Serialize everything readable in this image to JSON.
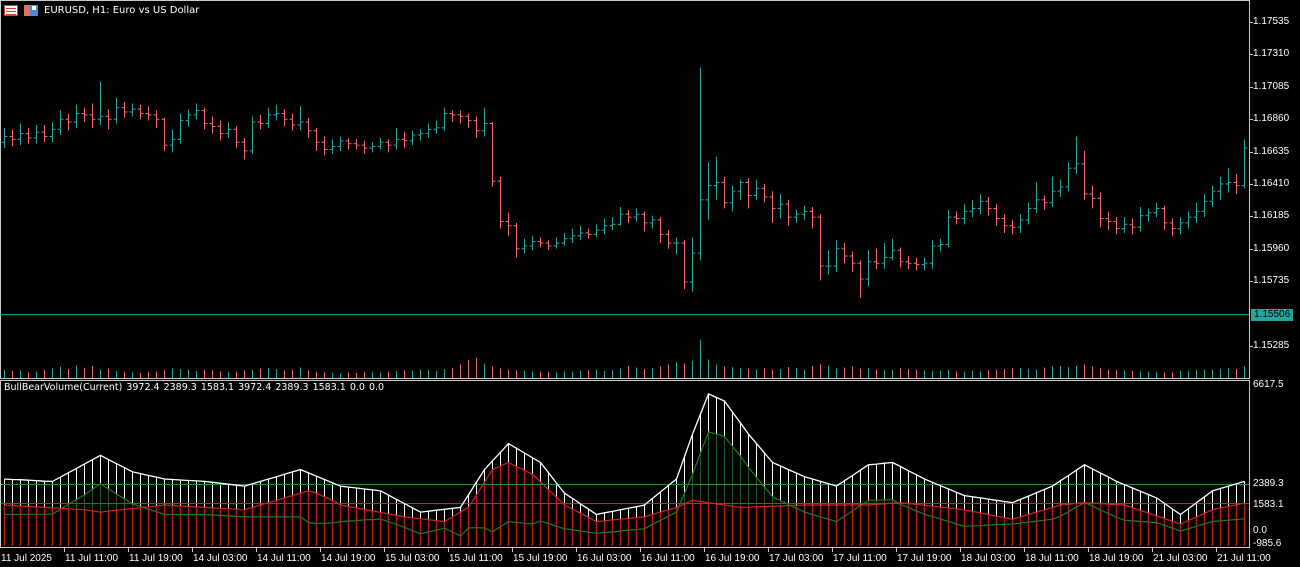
{
  "window": {
    "title": "EURUSD, H1:  Euro vs US Dollar",
    "icons": [
      "template-icon",
      "save-icon"
    ]
  },
  "colors": {
    "background": "#000000",
    "bull_bar": "#26a69a",
    "bear_bar": "#ef6a6a",
    "frame": "#c8c8c8",
    "total_line": "#ffffff",
    "bull_line": "#1f7a1f",
    "bear_line": "#d42020",
    "level_green": "#2a8a2a",
    "level_red": "#d42020",
    "current_price": "#26a69a"
  },
  "price_axis": {
    "labels": [
      "1.17535",
      "1.17310",
      "1.17085",
      "1.16860",
      "1.16635",
      "1.16410",
      "1.16185",
      "1.15960",
      "1.15735",
      "1.15285"
    ],
    "current_price": "1.15506"
  },
  "indicator": {
    "label": "BullBearVolume(Current)",
    "values": [
      "3972.4",
      "2389.3",
      "1583.1",
      "3972.4",
      "2389.3",
      "1583.1",
      "0.0",
      "0.0"
    ],
    "axis_labels": {
      "max": "6617.5",
      "level_bull": "2389.3",
      "level_bear": "1583.1",
      "zero": "0.0",
      "min": "-985.6"
    },
    "range": [
      -985.6,
      6617.5
    ],
    "levels": [
      2389.3,
      1583.1
    ]
  },
  "time_axis": {
    "labels": [
      "11 Jul 2025",
      "11 Jul 11:00",
      "11 Jul 19:00",
      "14 Jul 03:00",
      "14 Jul 11:00",
      "14 Jul 19:00",
      "15 Jul 03:00",
      "15 Jul 11:00",
      "15 Jul 19:00",
      "16 Jul 03:00",
      "16 Jul 11:00",
      "16 Jul 19:00",
      "17 Jul 03:00",
      "17 Jul 11:00",
      "17 Jul 19:00",
      "18 Jul 03:00",
      "18 Jul 11:00",
      "18 Jul 19:00",
      "21 Jul 03:00",
      "21 Jul 11:00"
    ]
  },
  "chart_data": [
    {
      "type": "ohlc",
      "symbol": "EURUSD",
      "timeframe": "H1",
      "ylim": [
        1.1517,
        1.177
      ],
      "open": [
        1.167,
        1.1674,
        1.1672,
        1.1676,
        1.1673,
        1.1677,
        1.1674,
        1.1679,
        1.1686,
        1.1684,
        1.169,
        1.1689,
        1.1686,
        1.1688,
        1.1686,
        1.1694,
        1.1691,
        1.1693,
        1.169,
        1.1689,
        1.1686,
        1.1668,
        1.1672,
        1.1685,
        1.1689,
        1.1692,
        1.1683,
        1.1681,
        1.1676,
        1.1679,
        1.167,
        1.1664,
        1.1684,
        1.1683,
        1.1689,
        1.169,
        1.1686,
        1.1682,
        1.1684,
        1.1678,
        1.167,
        1.1665,
        1.1667,
        1.1671,
        1.1669,
        1.1668,
        1.1666,
        1.1667,
        1.167,
        1.1668,
        1.1672,
        1.1671,
        1.1675,
        1.1676,
        1.1679,
        1.168,
        1.169,
        1.1689,
        1.1688,
        1.1685,
        1.1678,
        1.1683,
        1.1643,
        1.1615,
        1.1612,
        1.1596,
        1.1598,
        1.1601,
        1.16,
        1.1598,
        1.16,
        1.1603,
        1.1605,
        1.1607,
        1.1606,
        1.1609,
        1.1612,
        1.1613,
        1.162,
        1.1618,
        1.162,
        1.1614,
        1.1616,
        1.1606,
        1.16,
        1.16,
        1.1573,
        1.1593,
        1.163,
        1.164,
        1.1642,
        1.1628,
        1.1636,
        1.1642,
        1.1633,
        1.1638,
        1.1632,
        1.1624,
        1.1627,
        1.1618,
        1.162,
        1.1622,
        1.1618,
        1.1584,
        1.1584,
        1.1596,
        1.1591,
        1.1586,
        1.1575,
        1.1587,
        1.1586,
        1.159,
        1.1595,
        1.1587,
        1.1586,
        1.1585,
        1.1586,
        1.1598,
        1.1599,
        1.1618,
        1.1617,
        1.1622,
        1.1624,
        1.1629,
        1.1624,
        1.1617,
        1.1612,
        1.1611,
        1.1616,
        1.1624,
        1.163,
        1.1628,
        1.1636,
        1.1639,
        1.1652,
        1.1655,
        1.1634,
        1.1631,
        1.1617,
        1.1615,
        1.161,
        1.1613,
        1.1611,
        1.1619,
        1.1621,
        1.1624,
        1.1614,
        1.161,
        1.1614,
        1.1618,
        1.1622,
        1.1629,
        1.1636,
        1.1641,
        1.1642,
        1.164
      ],
      "high": [
        1.168,
        1.1679,
        1.1683,
        1.168,
        1.1682,
        1.1682,
        1.1684,
        1.1692,
        1.169,
        1.1696,
        1.1694,
        1.1697,
        1.1712,
        1.1693,
        1.1701,
        1.1698,
        1.1697,
        1.1696,
        1.1695,
        1.1692,
        1.1687,
        1.1679,
        1.169,
        1.1693,
        1.1697,
        1.1694,
        1.1688,
        1.1685,
        1.1684,
        1.1681,
        1.1673,
        1.1688,
        1.1689,
        1.1694,
        1.1696,
        1.1693,
        1.169,
        1.1695,
        1.1687,
        1.168,
        1.1674,
        1.1672,
        1.1674,
        1.1673,
        1.1672,
        1.1671,
        1.167,
        1.1673,
        1.1672,
        1.168,
        1.1677,
        1.1678,
        1.1679,
        1.1683,
        1.1685,
        1.1694,
        1.1692,
        1.1692,
        1.169,
        1.1688,
        1.1694,
        1.1684,
        1.1646,
        1.1621,
        1.1614,
        1.1603,
        1.1605,
        1.1604,
        1.1602,
        1.1604,
        1.1607,
        1.161,
        1.1612,
        1.161,
        1.1613,
        1.1617,
        1.1618,
        1.1625,
        1.1623,
        1.1624,
        1.1622,
        1.1619,
        1.1618,
        1.1609,
        1.1604,
        1.1602,
        1.1604,
        1.1722,
        1.1656,
        1.166,
        1.1646,
        1.164,
        1.1644,
        1.1645,
        1.1644,
        1.1641,
        1.1636,
        1.1634,
        1.163,
        1.1623,
        1.1626,
        1.1625,
        1.162,
        1.1595,
        1.1602,
        1.16,
        1.1594,
        1.1588,
        1.1595,
        1.1596,
        1.16,
        1.1603,
        1.1597,
        1.1591,
        1.159,
        1.159,
        1.1602,
        1.1603,
        1.1623,
        1.1622,
        1.1627,
        1.163,
        1.1634,
        1.1632,
        1.1627,
        1.162,
        1.1616,
        1.162,
        1.1628,
        1.1642,
        1.1633,
        1.1646,
        1.1644,
        1.1656,
        1.1674,
        1.1664,
        1.164,
        1.1635,
        1.1622,
        1.1618,
        1.1618,
        1.1617,
        1.1625,
        1.1624,
        1.1628,
        1.1626,
        1.1617,
        1.1618,
        1.1622,
        1.1628,
        1.1634,
        1.164,
        1.1646,
        1.1652,
        1.1648,
        1.1672
      ],
      "low": [
        1.1666,
        1.1667,
        1.1668,
        1.1669,
        1.1669,
        1.167,
        1.167,
        1.1675,
        1.1678,
        1.168,
        1.1684,
        1.168,
        1.1682,
        1.1679,
        1.1683,
        1.1687,
        1.1688,
        1.1686,
        1.1685,
        1.168,
        1.1664,
        1.1663,
        1.1669,
        1.1681,
        1.1686,
        1.1679,
        1.1676,
        1.1671,
        1.1673,
        1.1666,
        1.1658,
        1.1662,
        1.1679,
        1.168,
        1.1685,
        1.1681,
        1.1678,
        1.1678,
        1.1673,
        1.1664,
        1.1661,
        1.1662,
        1.1664,
        1.1665,
        1.1665,
        1.1662,
        1.1663,
        1.1665,
        1.1663,
        1.1665,
        1.1666,
        1.1668,
        1.1671,
        1.1673,
        1.1676,
        1.1678,
        1.1684,
        1.1683,
        1.168,
        1.1673,
        1.1674,
        1.1639,
        1.161,
        1.1605,
        1.159,
        1.1593,
        1.1595,
        1.1597,
        1.1595,
        1.1596,
        1.1598,
        1.16,
        1.1602,
        1.1603,
        1.1604,
        1.1606,
        1.1609,
        1.1612,
        1.1614,
        1.1615,
        1.1608,
        1.161,
        1.16,
        1.1596,
        1.1592,
        1.1568,
        1.1566,
        1.1588,
        1.1616,
        1.163,
        1.1624,
        1.1622,
        1.163,
        1.1624,
        1.163,
        1.1628,
        1.1614,
        1.1617,
        1.1612,
        1.1614,
        1.1616,
        1.161,
        1.1574,
        1.1578,
        1.158,
        1.1586,
        1.158,
        1.1562,
        1.157,
        1.1582,
        1.1582,
        1.1588,
        1.1583,
        1.1582,
        1.1581,
        1.1581,
        1.1582,
        1.1594,
        1.1597,
        1.1613,
        1.1613,
        1.1618,
        1.162,
        1.1619,
        1.1612,
        1.1607,
        1.1606,
        1.1607,
        1.1613,
        1.1621,
        1.1623,
        1.1625,
        1.1632,
        1.1636,
        1.1648,
        1.163,
        1.1624,
        1.1611,
        1.1609,
        1.1606,
        1.1607,
        1.1606,
        1.1608,
        1.1615,
        1.1618,
        1.1609,
        1.1605,
        1.1606,
        1.161,
        1.1614,
        1.1618,
        1.1625,
        1.163,
        1.1635,
        1.1634,
        1.1638
      ],
      "close": [
        1.1674,
        1.1672,
        1.1676,
        1.1673,
        1.1677,
        1.1674,
        1.1679,
        1.1686,
        1.1684,
        1.169,
        1.1689,
        1.1686,
        1.1688,
        1.1686,
        1.1694,
        1.1691,
        1.1693,
        1.169,
        1.1689,
        1.1686,
        1.1668,
        1.1672,
        1.1685,
        1.1689,
        1.1692,
        1.1683,
        1.1681,
        1.1676,
        1.1679,
        1.167,
        1.1664,
        1.1684,
        1.1683,
        1.1689,
        1.169,
        1.1686,
        1.1682,
        1.1684,
        1.1678,
        1.167,
        1.1665,
        1.1667,
        1.1671,
        1.1669,
        1.1668,
        1.1666,
        1.1667,
        1.167,
        1.1668,
        1.1672,
        1.1671,
        1.1675,
        1.1676,
        1.1679,
        1.168,
        1.169,
        1.1689,
        1.1688,
        1.1685,
        1.1678,
        1.1683,
        1.1643,
        1.1615,
        1.1612,
        1.1596,
        1.1598,
        1.1601,
        1.16,
        1.1598,
        1.16,
        1.1603,
        1.1605,
        1.1607,
        1.1606,
        1.1609,
        1.1612,
        1.1613,
        1.162,
        1.1618,
        1.162,
        1.1614,
        1.1616,
        1.1606,
        1.16,
        1.16,
        1.1573,
        1.1593,
        1.163,
        1.164,
        1.1642,
        1.1628,
        1.1636,
        1.1642,
        1.1633,
        1.1638,
        1.1632,
        1.1624,
        1.1627,
        1.1618,
        1.162,
        1.1622,
        1.1618,
        1.1584,
        1.1584,
        1.1596,
        1.1591,
        1.1586,
        1.1575,
        1.1587,
        1.1586,
        1.159,
        1.1595,
        1.1587,
        1.1586,
        1.1585,
        1.1586,
        1.1598,
        1.1599,
        1.1618,
        1.1617,
        1.1622,
        1.1624,
        1.1629,
        1.1624,
        1.1617,
        1.1612,
        1.1611,
        1.1616,
        1.1624,
        1.163,
        1.1628,
        1.1636,
        1.1639,
        1.1652,
        1.1655,
        1.1634,
        1.1631,
        1.1617,
        1.1615,
        1.161,
        1.1613,
        1.1611,
        1.1619,
        1.1621,
        1.1624,
        1.1614,
        1.161,
        1.1614,
        1.1618,
        1.1622,
        1.1629,
        1.1636,
        1.1641,
        1.1642,
        1.164,
        1.1666
      ],
      "volume": [
        2600,
        2200,
        2400,
        1800,
        2000,
        2600,
        3000,
        3500,
        2800,
        4000,
        3200,
        3800,
        2600,
        2900,
        2200,
        2000,
        1800,
        1600,
        1900,
        2100,
        2500,
        3000,
        2800,
        2600,
        2200,
        2700,
        2500,
        2100,
        1900,
        2000,
        2400,
        2600,
        2900,
        3100,
        2800,
        2400,
        2600,
        3300,
        2300,
        2000,
        1800,
        1600,
        1500,
        1700,
        1600,
        1900,
        1800,
        1700,
        2000,
        2200,
        2400,
        2300,
        2600,
        2500,
        2200,
        2800,
        3200,
        4300,
        5600,
        6400,
        4500,
        3600,
        3000,
        2600,
        2400,
        2300,
        2100,
        2000,
        1900,
        1800,
        2100,
        2000,
        2300,
        2400,
        2600,
        2200,
        2500,
        3000,
        3800,
        3300,
        2800,
        3100,
        3600,
        4200,
        5000,
        4600,
        5400,
        12000,
        5800,
        4200,
        3600,
        3400,
        3100,
        2900,
        2700,
        3000,
        2600,
        2800,
        3400,
        3200,
        2600,
        3800,
        4300,
        3900,
        3000,
        3300,
        3600,
        2900,
        3100,
        2700,
        2500,
        2600,
        3100,
        2800,
        2600,
        2400,
        2200,
        2300,
        2600,
        2100,
        2000,
        2300,
        2100,
        2400,
        2600,
        2800,
        3000,
        3200,
        2900,
        2700,
        3300,
        3600,
        3800,
        3400,
        3800,
        4200,
        3600,
        3000,
        2700,
        2500,
        2400,
        2200,
        2100,
        2000,
        1900,
        1800,
        1700,
        2300,
        2100,
        2500,
        2700,
        2600,
        2900,
        3100,
        2800,
        3600
      ]
    },
    {
      "type": "histogram+line",
      "title": "BullBearVolume(Current)",
      "ylim": [
        -985.6,
        6617.5
      ],
      "total": [
        2600,
        2580,
        2570,
        2550,
        2530,
        2510,
        2500,
        2680,
        2870,
        3050,
        3230,
        3420,
        3600,
        3420,
        3250,
        3080,
        2900,
        2830,
        2750,
        2680,
        2600,
        2580,
        2560,
        2540,
        2520,
        2500,
        2460,
        2420,
        2380,
        2340,
        2300,
        2400,
        2500,
        2600,
        2700,
        2800,
        2900,
        3000,
        2860,
        2720,
        2580,
        2440,
        2300,
        2260,
        2220,
        2180,
        2140,
        2100,
        1920,
        1740,
        1560,
        1380,
        1200,
        1240,
        1280,
        1320,
        1360,
        1400,
        1930,
        2470,
        3000,
        3370,
        3730,
        4100,
        3900,
        3700,
        3500,
        3300,
        2870,
        2430,
        2000,
        1780,
        1550,
        1330,
        1100,
        1170,
        1230,
        1300,
        1370,
        1430,
        1500,
        1780,
        2050,
        2330,
        2600,
        3550,
        4500,
        5350,
        6200,
        6050,
        5900,
        5430,
        4970,
        4500,
        4100,
        3700,
        3300,
        3150,
        3000,
        2850,
        2700,
        2600,
        2500,
        2400,
        2300,
        2530,
        2750,
        2980,
        3200,
        3230,
        3270,
        3300,
        3130,
        2950,
        2780,
        2600,
        2460,
        2320,
        2180,
        2040,
        1900,
        1850,
        1800,
        1750,
        1700,
        1650,
        1600,
        1740,
        1880,
        2020,
        2160,
        2300,
        2530,
        2750,
        2980,
        3200,
        3030,
        2850,
        2680,
        2500,
        2360,
        2220,
        2080,
        1940,
        1800,
        1570,
        1330,
        1100,
        1350,
        1600,
        1850,
        2100,
        2200,
        2300,
        2400,
        2500
      ],
      "bear": [
        1500,
        1480,
        1460,
        1440,
        1420,
        1400,
        1380,
        1360,
        1340,
        1320,
        1300,
        1250,
        1200,
        1240,
        1280,
        1320,
        1350,
        1390,
        1430,
        1460,
        1500,
        1480,
        1460,
        1440,
        1420,
        1400,
        1380,
        1360,
        1340,
        1320,
        1300,
        1400,
        1500,
        1600,
        1700,
        1800,
        1900,
        2000,
        2100,
        2000,
        1850,
        1700,
        1500,
        1440,
        1380,
        1310,
        1250,
        1190,
        1130,
        1060,
        1000,
        960,
        920,
        880,
        840,
        800,
        1000,
        1200,
        1400,
        1930,
        2470,
        3000,
        3150,
        3300,
        3130,
        2970,
        2800,
        2480,
        2150,
        1830,
        1500,
        1330,
        1150,
        980,
        800,
        830,
        870,
        900,
        930,
        970,
        1000,
        1100,
        1200,
        1300,
        1400,
        1550,
        1700,
        1650,
        1600,
        1550,
        1500,
        1450,
        1400,
        1410,
        1430,
        1440,
        1450,
        1460,
        1480,
        1490,
        1500,
        1500,
        1500,
        1500,
        1500,
        1500,
        1500,
        1500,
        1500,
        1530,
        1550,
        1580,
        1600,
        1560,
        1530,
        1490,
        1450,
        1410,
        1380,
        1340,
        1300,
        1230,
        1170,
        1100,
        1030,
        970,
        900,
        1000,
        1100,
        1200,
        1300,
        1400,
        1500,
        1530,
        1570,
        1600,
        1580,
        1560,
        1540,
        1520,
        1500,
        1390,
        1270,
        1160,
        1040,
        930,
        810,
        700,
        850,
        1000,
        1150,
        1300,
        1370,
        1440,
        1510,
        1583
      ]
    }
  ]
}
